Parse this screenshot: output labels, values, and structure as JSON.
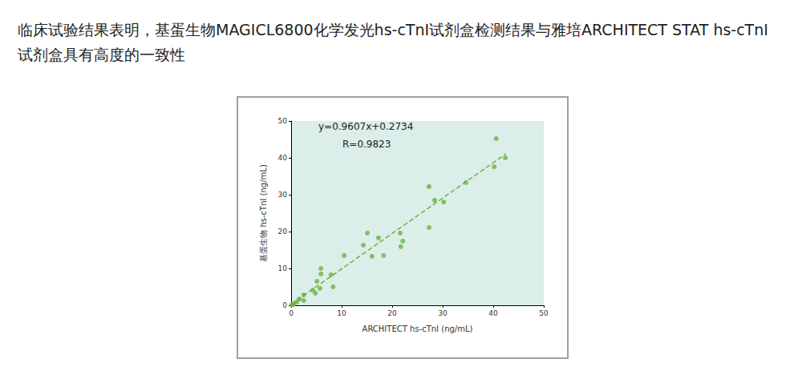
{
  "heading": "临床试验结果表明，基蛋生物MAGICL6800化学发光hs-cTnI试剂盒检测结果与雅培ARCHITECT STAT hs-cTnI试剂盒具有高度的一致性",
  "chart_data": {
    "type": "scatter",
    "xlabel": "ARCHITECT hs-cTnI (ng/mL)",
    "ylabel": "基蛋生物 hs-cTnI (ng/mL)",
    "x": [
      40.6,
      40.2,
      42.4,
      34.6,
      30.2,
      28.4,
      27.3,
      27.3,
      22.1,
      21.6,
      21.7,
      18.3,
      17.3,
      15.1,
      14.3,
      16.0,
      10.5,
      7.9,
      8.3,
      5.9,
      5.9,
      5.7,
      5.1,
      4.8,
      4.3,
      2.5,
      2.5,
      1.6,
      1.1,
      0.6,
      0.3,
      0.1
    ],
    "values": [
      45.2,
      37.6,
      40.0,
      33.3,
      28.0,
      28.5,
      32.2,
      21.1,
      17.4,
      19.6,
      15.9,
      13.5,
      18.3,
      19.6,
      16.3,
      13.3,
      13.5,
      8.3,
      5.0,
      10.0,
      8.5,
      4.6,
      6.5,
      3.3,
      4.1,
      2.8,
      1.3,
      1.7,
      0.9,
      0.4,
      0.2,
      0.1
    ],
    "color": "#6db33f",
    "marker": "circle",
    "xlim": [
      0,
      50
    ],
    "ylim": [
      0,
      50
    ],
    "xticks": [
      0,
      10,
      20,
      30,
      40,
      50
    ],
    "yticks": [
      0,
      10,
      20,
      30,
      40,
      50
    ],
    "grid": false,
    "annotations": [
      "y=0.9607x+0.2734",
      "R=0.9823"
    ],
    "fit": {
      "slope": 0.9607,
      "intercept": 0.2734,
      "x_range": [
        0,
        42.5
      ],
      "line_style": "dashed",
      "color": "#6db33f"
    }
  }
}
